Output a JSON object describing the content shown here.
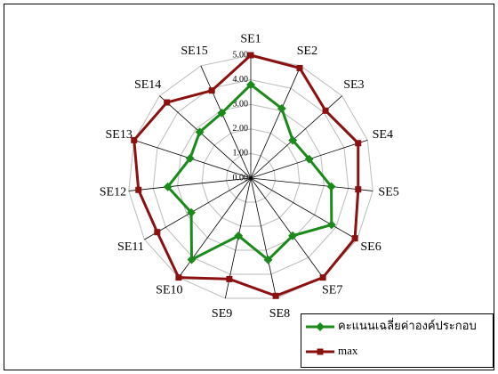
{
  "chart_data": {
    "type": "radar",
    "categories": [
      "SE1",
      "SE2",
      "SE3",
      "SE4",
      "SE5",
      "SE6",
      "SE7",
      "SE8",
      "SE9",
      "SE10",
      "SE11",
      "SE12",
      "SE13",
      "SE14",
      "SE15"
    ],
    "series": [
      {
        "name": "คะแนนเฉลี่ยค่าองค์ประกอบ",
        "color": "#1a8a1a",
        "values": [
          3.8,
          3.1,
          2.3,
          2.5,
          3.3,
          3.8,
          2.9,
          3.4,
          2.4,
          4.1,
          2.8,
          3.4,
          2.6,
          2.8,
          2.9
        ]
      },
      {
        "name": "max",
        "color": "#8b1010",
        "values": [
          5,
          4.9,
          4.1,
          4.6,
          4.4,
          4.9,
          5,
          4.9,
          4.2,
          5,
          4.4,
          4.6,
          5,
          4.6,
          3.9
        ]
      }
    ],
    "ylim": [
      0,
      5
    ],
    "yticks": [
      {
        "value": 0,
        "label": "0.00"
      },
      {
        "value": 1,
        "label": "1.00"
      },
      {
        "value": 2,
        "label": "2.00"
      },
      {
        "value": 3,
        "label": "3.00"
      },
      {
        "value": 4,
        "label": "4.00"
      },
      {
        "value": 5,
        "label": "5.00"
      }
    ],
    "grid": true,
    "legend": "bottom-right"
  }
}
